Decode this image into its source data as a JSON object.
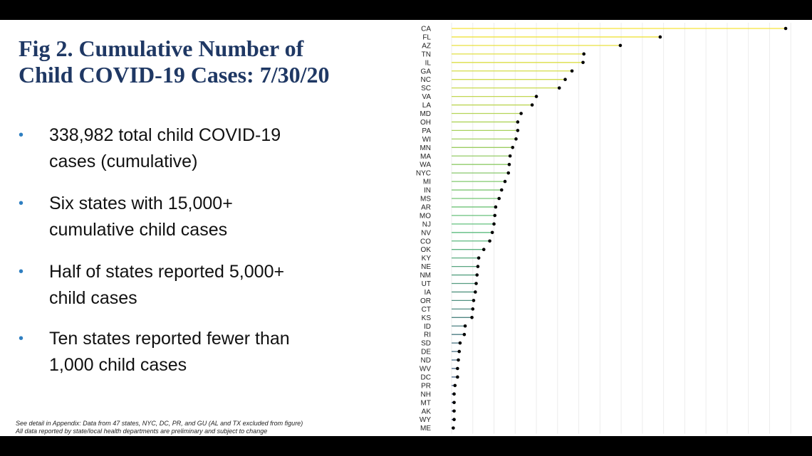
{
  "slide": {
    "title_line1": "Fig 2. Cumulative Number of",
    "title_line2": "Child COVID-19 Cases: 7/30/20",
    "bullets": [
      {
        "line1": "338,982 total child COVID-19",
        "line2": "cases (cumulative)"
      },
      {
        "line1": "Six states with 15,000+",
        "line2": "cumulative child cases"
      },
      {
        "line1": "Half of states reported 5,000+",
        "line2": "child cases"
      },
      {
        "line1": "Ten states reported fewer than",
        "line2": "1,000 child cases"
      }
    ],
    "bullet_glyph": "•",
    "footnote_line1": "See detail in Appendix: Data from 47 states, NYC, DC, PR, and GU (AL and TX excluded from figure)",
    "footnote_line2": "All data reported by state/local health departments are preliminary and subject to change"
  },
  "chart_data": {
    "type": "lollipop",
    "orientation": "horizontal",
    "title": "",
    "xlabel": "",
    "ylabel": "",
    "xlim": [
      0,
      42000
    ],
    "grid": true,
    "legend": "none",
    "categories": [
      "CA",
      "FL",
      "AZ",
      "TN",
      "IL",
      "GA",
      "NC",
      "SC",
      "VA",
      "LA",
      "MD",
      "OH",
      "PA",
      "WI",
      "MN",
      "MA",
      "WA",
      "NYC",
      "MI",
      "IN",
      "MS",
      "AR",
      "MO",
      "NJ",
      "NV",
      "CO",
      "OK",
      "KY",
      "NE",
      "NM",
      "UT",
      "IA",
      "OR",
      "CT",
      "KS",
      "ID",
      "RI",
      "SD",
      "DE",
      "ND",
      "WV",
      "DC",
      "PR",
      "NH",
      "MT",
      "AK",
      "WY",
      "ME"
    ],
    "values": [
      39400,
      24600,
      19900,
      15600,
      15500,
      14200,
      13400,
      12700,
      10000,
      9500,
      8200,
      7800,
      7800,
      7600,
      7200,
      6900,
      6800,
      6700,
      6300,
      5900,
      5600,
      5200,
      5100,
      5000,
      4800,
      4500,
      3800,
      3200,
      3100,
      3000,
      2900,
      2800,
      2600,
      2500,
      2400,
      1600,
      1500,
      1000,
      900,
      800,
      700,
      700,
      400,
      300,
      300,
      300,
      300,
      200
    ],
    "colors": {
      "high": "#f5e43a",
      "mid": "#5fbf7f",
      "low": "#3b3f86",
      "dot": "#000000",
      "grid": "#ececec"
    }
  }
}
